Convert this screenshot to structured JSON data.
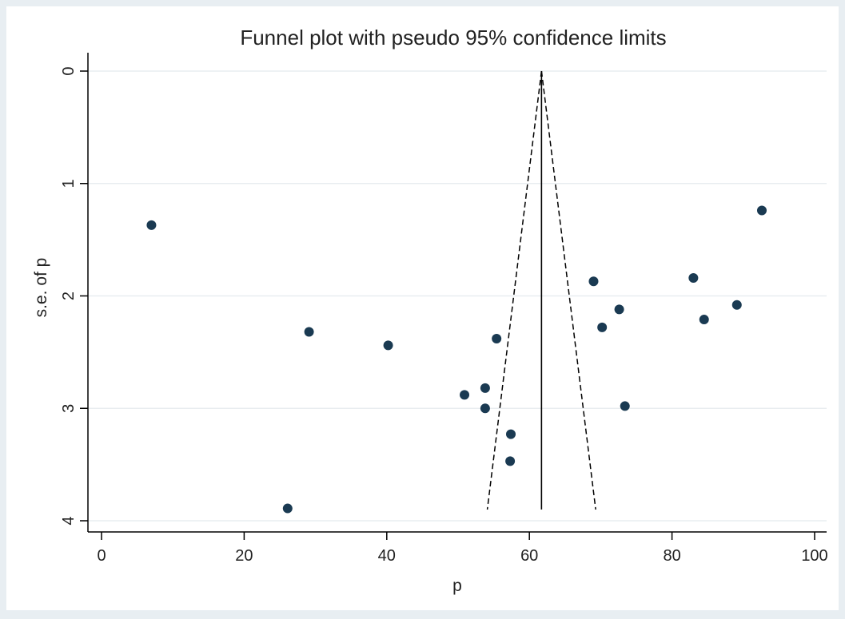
{
  "chart_data": {
    "type": "scatter",
    "title": "Funnel plot with pseudo 95% confidence limits",
    "xlabel": "p",
    "ylabel": "s.e. of p",
    "xlim": [
      0,
      100
    ],
    "ylim": [
      0,
      4
    ],
    "y_reversed": true,
    "grid": true,
    "x_ticks": [
      "0",
      "20",
      "40",
      "60",
      "80",
      "100"
    ],
    "y_ticks": [
      "0",
      "1",
      "2",
      "3",
      "4"
    ],
    "pooled_estimate": 61.7,
    "confidence_limits": {
      "style": "dashed",
      "lower": [
        {
          "x": 61.7,
          "y": 0
        },
        {
          "x": 54.1,
          "y": 3.9
        }
      ],
      "upper": [
        {
          "x": 61.7,
          "y": 0
        },
        {
          "x": 69.3,
          "y": 3.9
        }
      ]
    },
    "points": [
      {
        "x": 7.0,
        "y": 1.37
      },
      {
        "x": 26.1,
        "y": 3.89
      },
      {
        "x": 29.1,
        "y": 2.32
      },
      {
        "x": 40.2,
        "y": 2.44
      },
      {
        "x": 50.9,
        "y": 2.88
      },
      {
        "x": 53.8,
        "y": 2.82
      },
      {
        "x": 53.8,
        "y": 3.0
      },
      {
        "x": 55.4,
        "y": 2.38
      },
      {
        "x": 57.4,
        "y": 3.23
      },
      {
        "x": 57.3,
        "y": 3.47
      },
      {
        "x": 69.0,
        "y": 1.87
      },
      {
        "x": 70.2,
        "y": 2.28
      },
      {
        "x": 72.6,
        "y": 2.12
      },
      {
        "x": 73.4,
        "y": 2.98
      },
      {
        "x": 83.0,
        "y": 1.84
      },
      {
        "x": 84.5,
        "y": 2.21
      },
      {
        "x": 89.1,
        "y": 2.08
      },
      {
        "x": 92.6,
        "y": 1.24
      }
    ]
  },
  "colors": {
    "background": "#e8eef2",
    "plot_area": "#ffffff",
    "marker": "#1a3a52",
    "lines": "#000000",
    "grid": "#e4eaee"
  }
}
